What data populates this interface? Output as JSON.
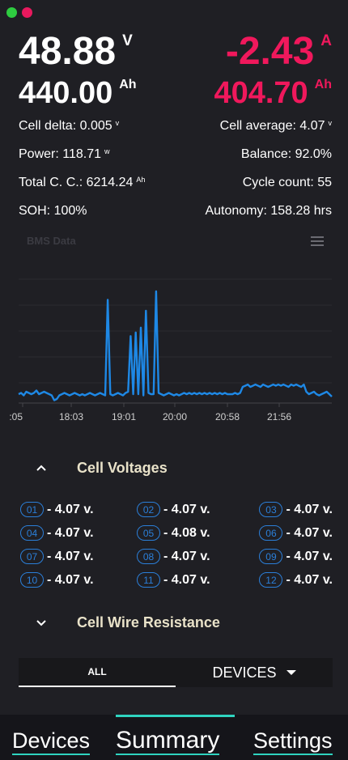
{
  "window": {
    "controls": [
      "maximize",
      "close"
    ]
  },
  "primary": {
    "voltage": {
      "value": "48.88",
      "unit": "V"
    },
    "current": {
      "value": "-2.43",
      "unit": "A"
    },
    "capacity": {
      "value": "440.00",
      "unit": "Ah"
    },
    "remaining": {
      "value": "404.70",
      "unit": "Ah"
    }
  },
  "stats": {
    "cell_delta": {
      "label": "Cell delta: 0.005",
      "unit": "v"
    },
    "cell_average": {
      "label": "Cell average: 4.07",
      "unit": "v"
    },
    "power": {
      "label": "Power: 118.71",
      "unit": "w"
    },
    "balance": {
      "label": "Balance: 92.0%"
    },
    "total_cc": {
      "label": "Total C. C.: 6214.24",
      "unit": "Ah"
    },
    "cycle_count": {
      "label": "Cycle count: 55"
    },
    "soh": {
      "label": "SOH: 100%"
    },
    "autonomy": {
      "label": "Autonomy: 158.28 hrs"
    }
  },
  "chart_data": {
    "type": "line",
    "title": "BMS Data",
    "x_tick_labels": [
      ":05",
      "18:03",
      "19:01",
      "20:00",
      "20:58",
      "21:56"
    ],
    "ylim": [
      0,
      100
    ],
    "series": [
      {
        "color": "#1e88e5",
        "values": [
          2,
          3,
          1,
          4,
          3,
          2,
          3,
          5,
          2,
          3,
          4,
          3,
          2,
          1,
          -3,
          -2,
          1,
          2,
          3,
          2,
          1,
          2,
          3,
          2,
          1,
          2,
          1,
          2,
          3,
          2,
          1,
          2,
          3,
          2,
          1,
          80,
          2,
          1,
          2,
          3,
          2,
          1,
          3,
          4,
          50,
          2,
          53,
          2,
          57,
          1,
          71,
          3,
          2,
          2,
          87,
          3,
          2,
          1,
          2,
          3,
          2,
          1,
          2,
          1,
          2,
          3,
          2,
          3,
          2,
          3,
          2,
          3,
          2,
          3,
          2,
          3,
          2,
          3,
          2,
          3,
          2,
          3,
          2,
          2,
          2,
          3,
          2,
          3,
          8,
          9,
          10,
          8,
          9,
          10,
          9,
          8,
          10,
          9,
          8,
          9,
          10,
          9,
          10,
          9,
          10,
          9,
          8,
          10,
          9,
          10,
          9,
          8,
          10,
          4,
          2,
          3,
          4,
          2,
          1,
          2,
          3,
          4,
          2,
          0
        ]
      }
    ],
    "grid": true
  },
  "cell_voltages": {
    "title": "Cell Voltages",
    "cells": [
      {
        "id": "01",
        "value": "- 4.07 v."
      },
      {
        "id": "02",
        "value": "- 4.07 v."
      },
      {
        "id": "03",
        "value": "- 4.07 v."
      },
      {
        "id": "04",
        "value": "- 4.07 v."
      },
      {
        "id": "05",
        "value": "- 4.08 v."
      },
      {
        "id": "06",
        "value": "- 4.07 v."
      },
      {
        "id": "07",
        "value": "- 4.07 v."
      },
      {
        "id": "08",
        "value": "- 4.07 v."
      },
      {
        "id": "09",
        "value": "- 4.07 v."
      },
      {
        "id": "10",
        "value": "- 4.07 v."
      },
      {
        "id": "11",
        "value": "- 4.07 v."
      },
      {
        "id": "12",
        "value": "- 4.07 v."
      }
    ]
  },
  "cell_wire_resistance": {
    "title": "Cell Wire Resistance"
  },
  "tabs": {
    "all": "ALL",
    "devices": "DEVICES"
  },
  "nav": {
    "devices": "Devices",
    "summary": "Summary",
    "settings": "Settings",
    "active": "summary"
  },
  "colors": {
    "accent": "#f0185c",
    "chart_line": "#1e88e5",
    "nav_accent": "#2fd4c0",
    "section_title": "#e9e2c9",
    "badge": "#2b7fd9"
  }
}
